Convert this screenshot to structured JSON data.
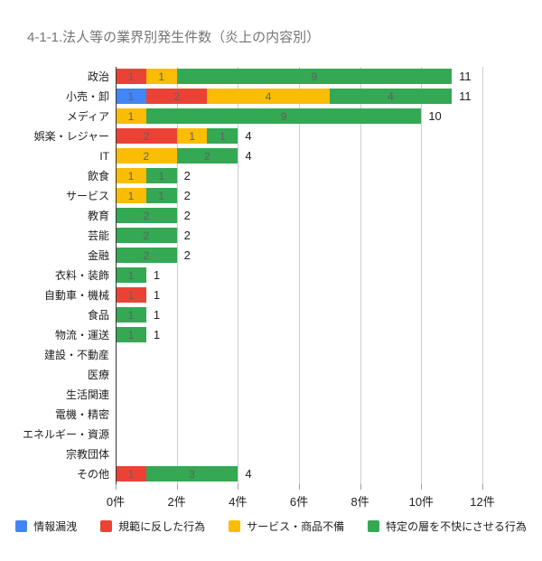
{
  "title": "4-1-1.法人等の業界別発生件数（炎上の内容別）",
  "colors": {
    "blue": "#4285F4",
    "red": "#EA4335",
    "yellow": "#FBBC04",
    "green": "#34A853",
    "gridline": "#cccccc",
    "baseline": "#333333",
    "title_text": "#757575",
    "segment_label": "#616161",
    "axis_text": "#212121"
  },
  "chart_data": {
    "type": "bar",
    "orientation": "horizontal",
    "stacked": true,
    "title": "4-1-1.法人等の業界別発生件数（炎上の内容別）",
    "xlabel": "",
    "ylabel": "",
    "xlim": [
      0,
      12
    ],
    "grid": true,
    "legend_position": "bottom",
    "x_ticks": [
      {
        "value": 0,
        "label": "0件"
      },
      {
        "value": 2,
        "label": "2件"
      },
      {
        "value": 4,
        "label": "4件"
      },
      {
        "value": 6,
        "label": "6件"
      },
      {
        "value": 8,
        "label": "8件"
      },
      {
        "value": 10,
        "label": "10件"
      },
      {
        "value": 12,
        "label": "12件"
      }
    ],
    "categories": [
      "政治",
      "小売・卸",
      "メディア",
      "娯楽・レジャー",
      "IT",
      "飲食",
      "サービス",
      "教育",
      "芸能",
      "金融",
      "衣料・装飾",
      "自動車・機械",
      "食品",
      "物流・運送",
      "建設・不動産",
      "医療",
      "生活関連",
      "電機・精密",
      "エネルギー・資源",
      "宗教団体",
      "その他"
    ],
    "series": [
      {
        "name": "情報漏洩",
        "color": "#4285F4",
        "values": [
          0,
          1,
          0,
          0,
          0,
          0,
          0,
          0,
          0,
          0,
          0,
          0,
          0,
          0,
          0,
          0,
          0,
          0,
          0,
          0,
          0
        ]
      },
      {
        "name": "規範に反した行為",
        "color": "#EA4335",
        "values": [
          1,
          2,
          0,
          2,
          0,
          0,
          0,
          0,
          0,
          0,
          0,
          1,
          0,
          0,
          0,
          0,
          0,
          0,
          0,
          0,
          1
        ]
      },
      {
        "name": "サービス・商品不備",
        "color": "#FBBC04",
        "values": [
          1,
          4,
          1,
          1,
          2,
          1,
          1,
          0,
          0,
          0,
          0,
          0,
          0,
          0,
          0,
          0,
          0,
          0,
          0,
          0,
          0
        ]
      },
      {
        "name": "特定の層を不快にさせる行為",
        "color": "#34A853",
        "values": [
          9,
          4,
          9,
          1,
          2,
          1,
          1,
          2,
          2,
          2,
          1,
          0,
          1,
          1,
          0,
          0,
          0,
          0,
          0,
          0,
          3
        ]
      }
    ],
    "totals": [
      11,
      11,
      10,
      4,
      4,
      2,
      2,
      2,
      2,
      2,
      1,
      1,
      1,
      1,
      0,
      0,
      0,
      0,
      0,
      0,
      4
    ]
  },
  "legend": {
    "items": [
      {
        "label": "情報漏洩",
        "color": "#4285F4"
      },
      {
        "label": "規範に反した行為",
        "color": "#EA4335"
      },
      {
        "label": "サービス・商品不備",
        "color": "#FBBC04"
      },
      {
        "label": "特定の層を不快にさせる行為",
        "color": "#34A853"
      }
    ]
  }
}
